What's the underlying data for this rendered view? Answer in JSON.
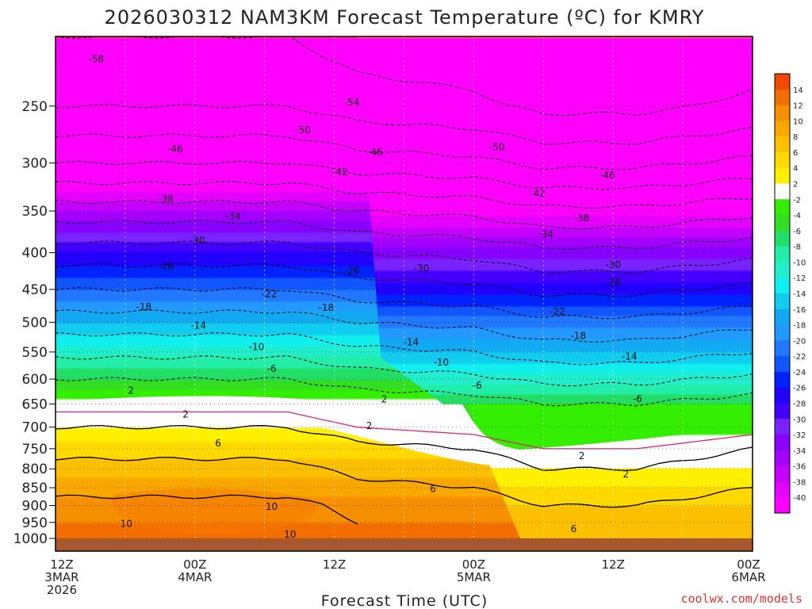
{
  "chart_data": {
    "type": "heatmap",
    "title": "2026030312 NAM3KM Forecast Temperature (ºC) for KMRY",
    "xlabel": "Forecast Time (UTC)",
    "ylabel": "",
    "credit": "coolwx.com/models",
    "x_ticks": [
      {
        "hour": 0,
        "lines": [
          "12Z",
          "3MAR",
          "2026"
        ]
      },
      {
        "hour": 12,
        "lines": [
          "00Z",
          "4MAR"
        ]
      },
      {
        "hour": 24,
        "lines": [
          "12Z"
        ]
      },
      {
        "hour": 36,
        "lines": [
          "00Z",
          "5MAR"
        ]
      },
      {
        "hour": 48,
        "lines": [
          "12Z"
        ]
      },
      {
        "hour": 60,
        "lines": [
          "00Z",
          "6MAR"
        ]
      }
    ],
    "xlim": [
      0,
      60
    ],
    "y_ticks": [
      250,
      300,
      350,
      400,
      450,
      500,
      550,
      600,
      650,
      700,
      750,
      800,
      850,
      900,
      950,
      1000
    ],
    "ylim": [
      200,
      1000
    ],
    "colorbar": {
      "ticks": [
        14,
        12,
        10,
        8,
        6,
        4,
        2,
        -2,
        -4,
        -6,
        -8,
        -10,
        -12,
        -14,
        -16,
        -18,
        -20,
        -22,
        -24,
        -26,
        -28,
        -30,
        -32,
        -34,
        -36,
        -38,
        -40
      ],
      "bands": [
        "#f24800",
        "#f26e00",
        "#f79000",
        "#f9a800",
        "#fcc000",
        "#ffd800",
        "#fff000",
        "#ffffff",
        "#33ee00",
        "#33dd22",
        "#22dd66",
        "#22eeaa",
        "#22eecc",
        "#11eeee",
        "#11ccee",
        "#11aaf2",
        "#2299ff",
        "#2277ff",
        "#1155ff",
        "#0022ff",
        "#2200ff",
        "#4400ff",
        "#7722ff",
        "#8800ff",
        "#a400ff",
        "#c400ff",
        "#e400ff",
        "#ff00ff"
      ]
    },
    "temperature_profile": [
      {
        "p": 200,
        "t": -58
      },
      {
        "p": 250,
        "t": -54
      },
      {
        "p": 300,
        "t": -46
      },
      {
        "p": 350,
        "t": -36
      },
      {
        "p": 400,
        "t": -28
      },
      {
        "p": 450,
        "t": -22
      },
      {
        "p": 500,
        "t": -16
      },
      {
        "p": 550,
        "t": -11
      },
      {
        "p": 600,
        "t": -6
      },
      {
        "p": 650,
        "t": -1
      },
      {
        "p": 700,
        "t": 2
      },
      {
        "p": 750,
        "t": 5
      },
      {
        "p": 800,
        "t": 7
      },
      {
        "p": 850,
        "t": 9
      },
      {
        "p": 900,
        "t": 11
      },
      {
        "p": 950,
        "t": 12
      },
      {
        "p": 1000,
        "t": 12
      }
    ],
    "time_shift": [
      {
        "hour": 0,
        "dt": 0
      },
      {
        "hour": 20,
        "dt": 0
      },
      {
        "hour": 26,
        "dt": -2
      },
      {
        "hour": 36,
        "dt": -3
      },
      {
        "hour": 42,
        "dt": -5
      },
      {
        "hour": 50,
        "dt": -5
      },
      {
        "hour": 60,
        "dt": -3
      }
    ],
    "contour_labels": [
      {
        "text": "-58",
        "hour": 3.5,
        "p": 215
      },
      {
        "text": "-54",
        "hour": 25.5,
        "p": 247
      },
      {
        "text": "-50",
        "hour": 21.3,
        "p": 270
      },
      {
        "text": "-46",
        "hour": 10.3,
        "p": 287
      },
      {
        "text": "-46",
        "hour": 27.5,
        "p": 290
      },
      {
        "text": "-50",
        "hour": 38,
        "p": 285
      },
      {
        "text": "-42",
        "hour": 24.5,
        "p": 309
      },
      {
        "text": "-46",
        "hour": 47.5,
        "p": 312
      },
      {
        "text": "-42",
        "hour": 41.5,
        "p": 331
      },
      {
        "text": "-38",
        "hour": 9.5,
        "p": 337
      },
      {
        "text": "-34",
        "hour": 15.3,
        "p": 356
      },
      {
        "text": "-38",
        "hour": 45.3,
        "p": 358
      },
      {
        "text": "-34",
        "hour": 42.2,
        "p": 377
      },
      {
        "text": "-30",
        "hour": 12.2,
        "p": 385
      },
      {
        "text": "-30",
        "hour": 31.5,
        "p": 421
      },
      {
        "text": "-30",
        "hour": 48,
        "p": 416
      },
      {
        "text": "-26",
        "hour": 9.5,
        "p": 418
      },
      {
        "text": "-26",
        "hour": 25.5,
        "p": 424
      },
      {
        "text": "-26",
        "hour": 48,
        "p": 440
      },
      {
        "text": "-22",
        "hour": 18.4,
        "p": 457
      },
      {
        "text": "-22",
        "hour": 43.2,
        "p": 483
      },
      {
        "text": "-18",
        "hour": 7.6,
        "p": 476
      },
      {
        "text": "-18",
        "hour": 23.3,
        "p": 477
      },
      {
        "text": "-18",
        "hour": 45,
        "p": 522
      },
      {
        "text": "-14",
        "hour": 12.3,
        "p": 505
      },
      {
        "text": "-14",
        "hour": 30.6,
        "p": 533
      },
      {
        "text": "-14",
        "hour": 49.4,
        "p": 558
      },
      {
        "text": "-10",
        "hour": 17.3,
        "p": 541
      },
      {
        "text": "-10",
        "hour": 33.2,
        "p": 569
      },
      {
        "text": "-6",
        "hour": 18.6,
        "p": 580
      },
      {
        "text": "-6",
        "hour": 36.3,
        "p": 612
      },
      {
        "text": "-6",
        "hour": 50.1,
        "p": 639
      },
      {
        "text": "2",
        "hour": 6.5,
        "p": 622
      },
      {
        "text": "2",
        "hour": 28.3,
        "p": 640
      },
      {
        "text": "2",
        "hour": 11.2,
        "p": 672
      },
      {
        "text": "2",
        "hour": 27,
        "p": 697
      },
      {
        "text": "2",
        "hour": 45.3,
        "p": 768
      },
      {
        "text": "2",
        "hour": 49.1,
        "p": 814
      },
      {
        "text": "6",
        "hour": 14,
        "p": 737
      },
      {
        "text": "6",
        "hour": 32.5,
        "p": 853
      },
      {
        "text": "6",
        "hour": 44.6,
        "p": 970
      },
      {
        "text": "10",
        "hour": 18.6,
        "p": 903
      },
      {
        "text": "10",
        "hour": 6.1,
        "p": 954
      },
      {
        "text": "10",
        "hour": 20.2,
        "p": 987
      }
    ]
  }
}
